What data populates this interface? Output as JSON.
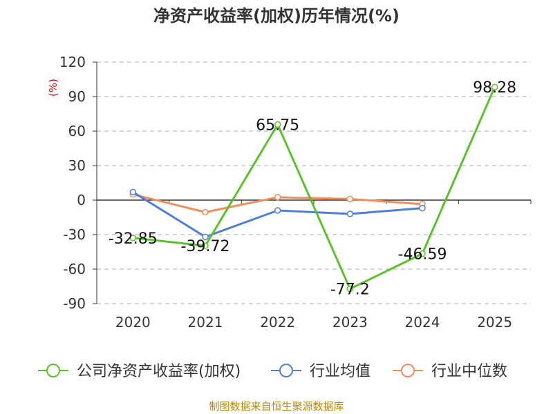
{
  "title": "净资产收益率(加权)历年情况(%)",
  "unit_label": "(%)",
  "source": "制图数据来自恒生聚源数据库",
  "chart_data": {
    "type": "line",
    "categories": [
      "2020",
      "2021",
      "2022",
      "2023",
      "2024",
      "2025"
    ],
    "ylim": [
      -90,
      120
    ],
    "yticks": [
      120,
      90,
      60,
      30,
      0,
      -30,
      -60,
      -90
    ],
    "grid": true,
    "legend_position": "bottom",
    "series": [
      {
        "name": "公司净资产收益率(加权)",
        "color": "#5cc129",
        "values": [
          -32.85,
          -39.72,
          65.75,
          -77.2,
          -46.59,
          98.28
        ],
        "labels": [
          "-32.85",
          "-39.72",
          "65.75",
          "-77.2",
          "-46.59",
          "98.28"
        ]
      },
      {
        "name": "行业均值",
        "color": "#4f7fd6",
        "values": [
          7,
          -32,
          -9,
          -12,
          -7,
          null
        ]
      },
      {
        "name": "行业中位数",
        "color": "#f28c5a",
        "values": [
          5,
          -10.5,
          2.5,
          1,
          -3.5,
          null
        ]
      }
    ]
  }
}
